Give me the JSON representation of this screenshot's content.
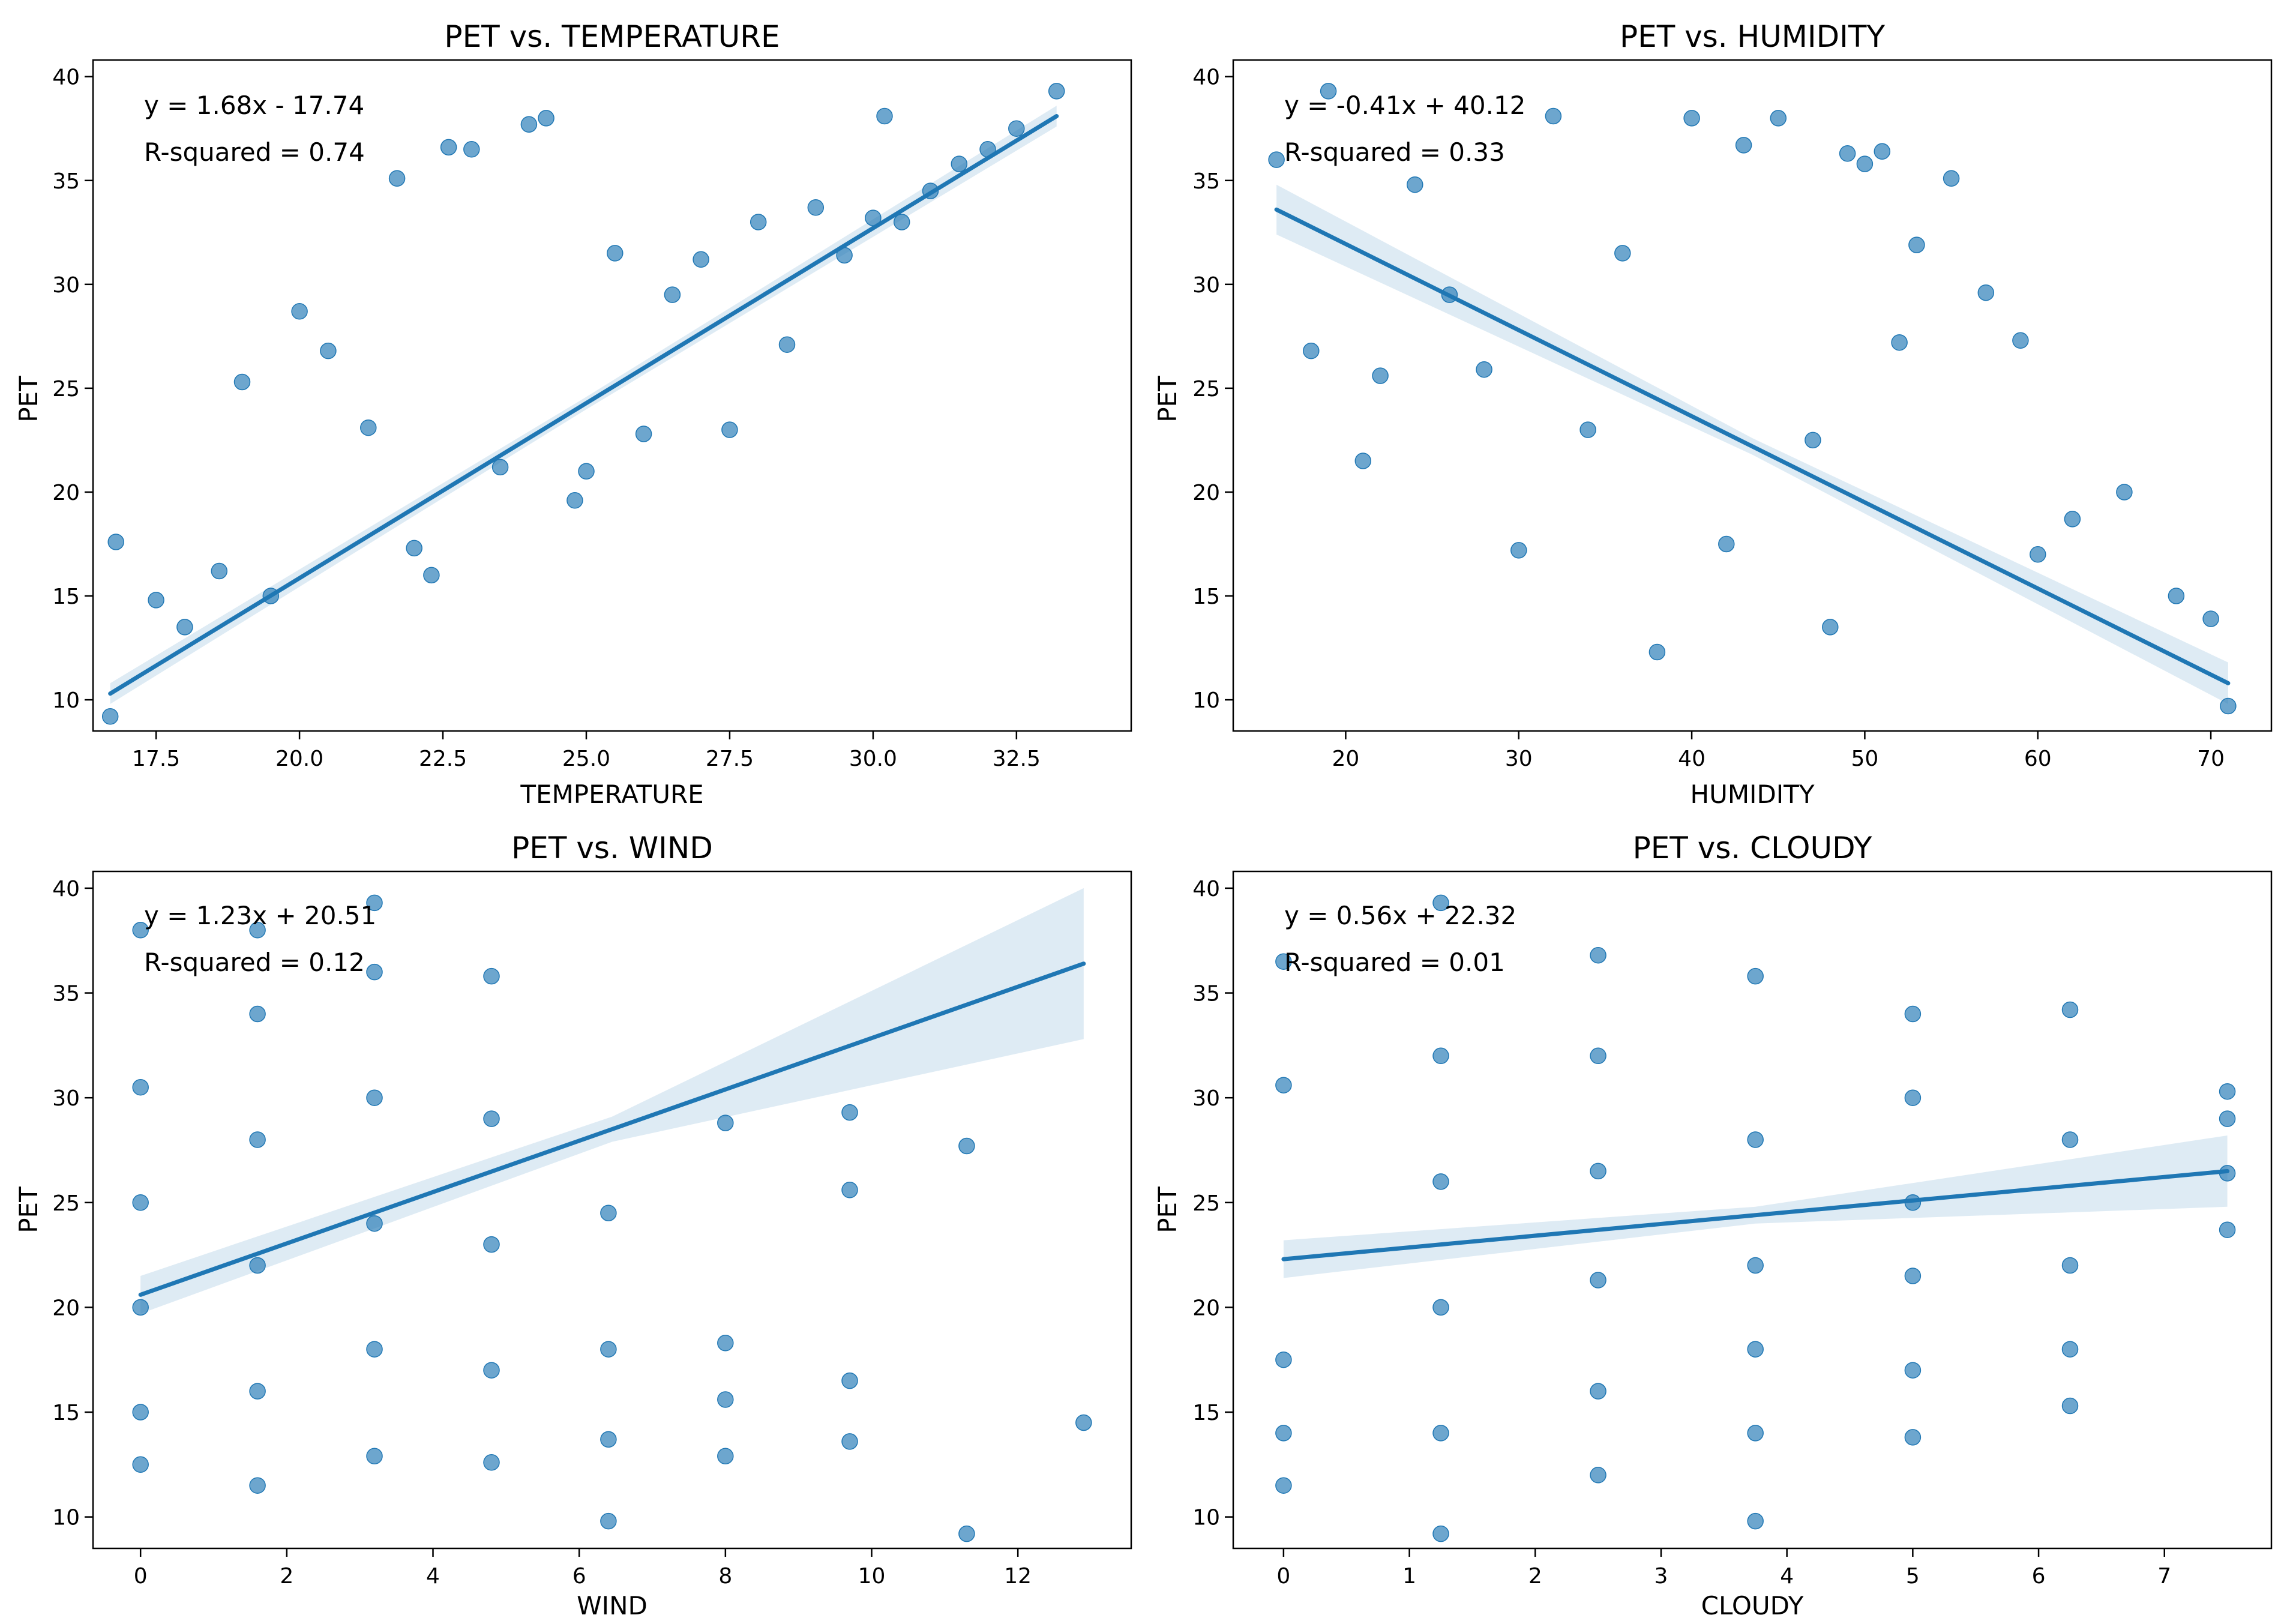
{
  "colors": {
    "point": "#1f77b4",
    "line": "#1f77b4",
    "band": "#1f77b4"
  },
  "chart_data": [
    {
      "type": "scatter",
      "title": "PET vs. TEMPERATURE",
      "xlabel": "TEMPERATURE",
      "ylabel": "PET",
      "xlim": [
        16.4,
        34.5
      ],
      "ylim": [
        8.5,
        40.8
      ],
      "xticks": [
        17.5,
        20.0,
        22.5,
        25.0,
        27.5,
        30.0,
        32.5
      ],
      "xtick_labels": [
        "17.5",
        "20.0",
        "22.5",
        "25.0",
        "27.5",
        "30.0",
        "32.5"
      ],
      "yticks": [
        10,
        15,
        20,
        25,
        30,
        35,
        40
      ],
      "ytick_labels": [
        "10",
        "15",
        "20",
        "25",
        "30",
        "35",
        "40"
      ],
      "equation": "y = 1.68x - 17.74",
      "r_squared": "R-squared = 0.74",
      "fit": {
        "x": [
          16.7,
          33.2
        ],
        "y": [
          10.3,
          38.1
        ],
        "ci_halfwidth": [
          0.5,
          0.3,
          0.5
        ]
      },
      "points_sample": [
        [
          16.7,
          9.2
        ],
        [
          16.8,
          17.6
        ],
        [
          17.5,
          14.8
        ],
        [
          18.0,
          13.5
        ],
        [
          18.6,
          16.2
        ],
        [
          19.0,
          25.3
        ],
        [
          19.5,
          15.0
        ],
        [
          20.0,
          28.7
        ],
        [
          20.5,
          26.8
        ],
        [
          21.2,
          23.1
        ],
        [
          21.7,
          35.1
        ],
        [
          22.0,
          17.3
        ],
        [
          22.3,
          16.0
        ],
        [
          22.6,
          36.6
        ],
        [
          23.0,
          36.5
        ],
        [
          23.5,
          21.2
        ],
        [
          24.0,
          37.7
        ],
        [
          24.3,
          38.0
        ],
        [
          24.8,
          19.6
        ],
        [
          25.0,
          21.0
        ],
        [
          25.5,
          31.5
        ],
        [
          26.0,
          22.8
        ],
        [
          26.5,
          29.5
        ],
        [
          27.0,
          31.2
        ],
        [
          27.5,
          23.0
        ],
        [
          28.0,
          33.0
        ],
        [
          28.5,
          27.1
        ],
        [
          29.0,
          33.7
        ],
        [
          29.5,
          31.4
        ],
        [
          30.0,
          33.2
        ],
        [
          30.2,
          38.1
        ],
        [
          30.5,
          33.0
        ],
        [
          31.0,
          34.5
        ],
        [
          31.5,
          35.8
        ],
        [
          32.0,
          36.5
        ],
        [
          32.5,
          37.5
        ],
        [
          33.2,
          39.3
        ]
      ]
    },
    {
      "type": "scatter",
      "title": "PET vs. HUMIDITY",
      "xlabel": "HUMIDITY",
      "ylabel": "PET",
      "xlim": [
        13.5,
        73.5
      ],
      "ylim": [
        8.5,
        40.8
      ],
      "xticks": [
        20,
        30,
        40,
        50,
        60,
        70
      ],
      "xtick_labels": [
        "20",
        "30",
        "40",
        "50",
        "60",
        "70"
      ],
      "yticks": [
        10,
        15,
        20,
        25,
        30,
        35,
        40
      ],
      "ytick_labels": [
        "10",
        "15",
        "20",
        "25",
        "30",
        "35",
        "40"
      ],
      "equation": "y = -0.41x + 40.12",
      "r_squared": "R-squared = 0.33",
      "fit": {
        "x": [
          16,
          71
        ],
        "y": [
          33.6,
          10.8
        ],
        "ci_halfwidth": [
          1.2,
          0.4,
          1.0
        ]
      },
      "points_sample": [
        [
          16,
          36.0
        ],
        [
          18,
          26.8
        ],
        [
          19,
          39.3
        ],
        [
          21,
          21.5
        ],
        [
          22,
          25.6
        ],
        [
          24,
          34.8
        ],
        [
          26,
          29.5
        ],
        [
          28,
          25.9
        ],
        [
          30,
          17.2
        ],
        [
          32,
          38.1
        ],
        [
          34,
          23.0
        ],
        [
          36,
          31.5
        ],
        [
          38,
          12.3
        ],
        [
          40,
          38.0
        ],
        [
          42,
          17.5
        ],
        [
          43,
          36.7
        ],
        [
          45,
          38.0
        ],
        [
          47,
          22.5
        ],
        [
          48,
          13.5
        ],
        [
          49,
          36.3
        ],
        [
          50,
          35.8
        ],
        [
          51,
          36.4
        ],
        [
          52,
          27.2
        ],
        [
          53,
          31.9
        ],
        [
          55,
          35.1
        ],
        [
          57,
          29.6
        ],
        [
          59,
          27.3
        ],
        [
          60,
          17.0
        ],
        [
          62,
          18.7
        ],
        [
          65,
          20.0
        ],
        [
          68,
          15.0
        ],
        [
          70,
          13.9
        ],
        [
          71,
          9.7
        ]
      ]
    },
    {
      "type": "scatter",
      "title": "PET vs. WIND",
      "xlabel": "WIND",
      "ylabel": "PET",
      "xlim": [
        -0.65,
        13.55
      ],
      "ylim": [
        8.5,
        40.8
      ],
      "xticks": [
        0,
        2,
        4,
        6,
        8,
        10,
        12
      ],
      "xtick_labels": [
        "0",
        "2",
        "4",
        "6",
        "8",
        "10",
        "12"
      ],
      "yticks": [
        10,
        15,
        20,
        25,
        30,
        35,
        40
      ],
      "ytick_labels": [
        "10",
        "15",
        "20",
        "25",
        "30",
        "35",
        "40"
      ],
      "equation": "y = 1.23x + 20.51",
      "r_squared": "R-squared = 0.12",
      "fit": {
        "x": [
          0,
          12.9
        ],
        "y": [
          20.6,
          36.4
        ],
        "ci_halfwidth": [
          0.9,
          0.6,
          3.6
        ]
      },
      "points_sample": [
        [
          0,
          12.5
        ],
        [
          0,
          15.0
        ],
        [
          0,
          20.0
        ],
        [
          0,
          25.0
        ],
        [
          0,
          30.5
        ],
        [
          0,
          38.0
        ],
        [
          1.6,
          11.5
        ],
        [
          1.6,
          16.0
        ],
        [
          1.6,
          22.0
        ],
        [
          1.6,
          28.0
        ],
        [
          1.6,
          34.0
        ],
        [
          1.6,
          38.0
        ],
        [
          3.2,
          12.9
        ],
        [
          3.2,
          18.0
        ],
        [
          3.2,
          24.0
        ],
        [
          3.2,
          30.0
        ],
        [
          3.2,
          36.0
        ],
        [
          3.2,
          39.3
        ],
        [
          4.8,
          12.6
        ],
        [
          4.8,
          17.0
        ],
        [
          4.8,
          23.0
        ],
        [
          4.8,
          29.0
        ],
        [
          4.8,
          35.8
        ],
        [
          6.4,
          9.8
        ],
        [
          6.4,
          13.7
        ],
        [
          6.4,
          18.0
        ],
        [
          6.4,
          24.5
        ],
        [
          8.0,
          12.9
        ],
        [
          8.0,
          15.6
        ],
        [
          8.0,
          18.3
        ],
        [
          8.0,
          28.8
        ],
        [
          9.7,
          13.6
        ],
        [
          9.7,
          16.5
        ],
        [
          9.7,
          25.6
        ],
        [
          9.7,
          29.3
        ],
        [
          11.3,
          9.2
        ],
        [
          11.3,
          27.7
        ],
        [
          12.9,
          14.5
        ]
      ]
    },
    {
      "type": "scatter",
      "title": "PET vs. CLOUDY",
      "xlabel": "CLOUDY",
      "ylabel": "PET",
      "xlim": [
        -0.4,
        7.85
      ],
      "ylim": [
        8.5,
        40.8
      ],
      "xticks": [
        0,
        1,
        2,
        3,
        4,
        5,
        6,
        7
      ],
      "xtick_labels": [
        "0",
        "1",
        "2",
        "3",
        "4",
        "5",
        "6",
        "7"
      ],
      "yticks": [
        10,
        15,
        20,
        25,
        30,
        35,
        40
      ],
      "ytick_labels": [
        "10",
        "15",
        "20",
        "25",
        "30",
        "35",
        "40"
      ],
      "equation": "y = 0.56x + 22.32",
      "r_squared": "R-squared = 0.01",
      "fit": {
        "x": [
          0,
          7.5
        ],
        "y": [
          22.3,
          26.5
        ],
        "ci_halfwidth": [
          0.9,
          0.4,
          1.7
        ]
      },
      "points_sample": [
        [
          0,
          11.5
        ],
        [
          0,
          14.0
        ],
        [
          0,
          17.5
        ],
        [
          0,
          30.6
        ],
        [
          0,
          36.5
        ],
        [
          1.25,
          9.2
        ],
        [
          1.25,
          14.0
        ],
        [
          1.25,
          20.0
        ],
        [
          1.25,
          26.0
        ],
        [
          1.25,
          32.0
        ],
        [
          1.25,
          39.3
        ],
        [
          2.5,
          12.0
        ],
        [
          2.5,
          16.0
        ],
        [
          2.5,
          21.3
        ],
        [
          2.5,
          26.5
        ],
        [
          2.5,
          32.0
        ],
        [
          2.5,
          36.8
        ],
        [
          3.75,
          9.8
        ],
        [
          3.75,
          14.0
        ],
        [
          3.75,
          18.0
        ],
        [
          3.75,
          22.0
        ],
        [
          3.75,
          28.0
        ],
        [
          3.75,
          35.8
        ],
        [
          5.0,
          13.8
        ],
        [
          5.0,
          17.0
        ],
        [
          5.0,
          21.5
        ],
        [
          5.0,
          25.0
        ],
        [
          5.0,
          30.0
        ],
        [
          5.0,
          34.0
        ],
        [
          6.25,
          15.3
        ],
        [
          6.25,
          18.0
        ],
        [
          6.25,
          22.0
        ],
        [
          6.25,
          28.0
        ],
        [
          6.25,
          34.2
        ],
        [
          7.5,
          23.7
        ],
        [
          7.5,
          26.4
        ],
        [
          7.5,
          29.0
        ],
        [
          7.5,
          30.3
        ]
      ]
    }
  ]
}
